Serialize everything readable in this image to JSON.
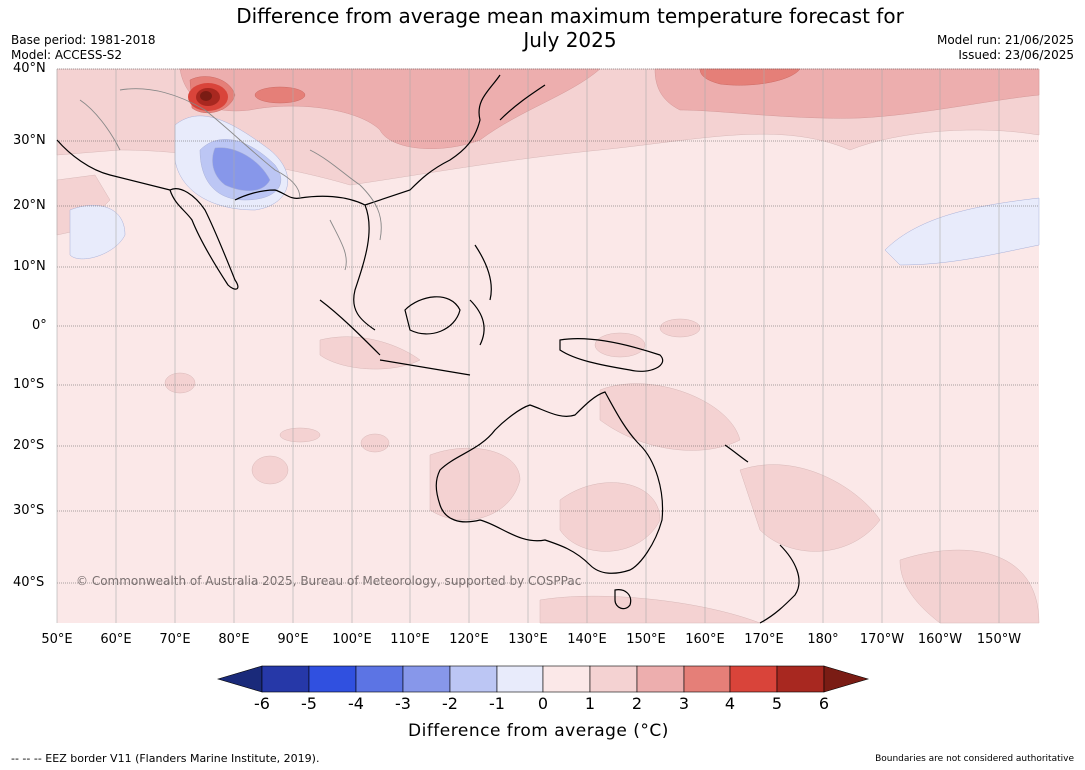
{
  "title_line1": "Difference from average mean maximum temperature forecast for",
  "title_line2": "July 2025",
  "base_period": "Base period: 1981-2018",
  "model": "Model: ACCESS-S2",
  "model_run": "Model run: 21/06/2025",
  "issued": "Issued: 23/06/2025",
  "lat_labels": [
    "40°N",
    "30°N",
    "20°N",
    "10°N",
    "0°",
    "10°S",
    "20°S",
    "30°S",
    "40°S"
  ],
  "lon_labels": [
    "50°E",
    "60°E",
    "70°E",
    "80°E",
    "90°E",
    "100°E",
    "110°E",
    "120°E",
    "130°E",
    "140°E",
    "150°E",
    "160°E",
    "170°E",
    "180°",
    "170°W",
    "160°W",
    "150°W"
  ],
  "copyright": "© Commonwealth of Australia 2025, Bureau of Meteorology, supported by COSPPac",
  "colorbar": {
    "ticks": [
      "-6",
      "-5",
      "-4",
      "-3",
      "-2",
      "-1",
      "0",
      "1",
      "2",
      "3",
      "4",
      "5",
      "6"
    ],
    "colors": [
      "#1a2a7a",
      "#2638a8",
      "#3050e0",
      "#5c74e4",
      "#8797ea",
      "#bcc6f4",
      "#e8ebfb",
      "#fbe8e8",
      "#f4d2d2",
      "#edaeae",
      "#e57f78",
      "#d9443a",
      "#a82820",
      "#7a1c14"
    ],
    "label": "Difference from average (°C)"
  },
  "footer_left": "--  --  -- EEZ border V11 (Flanders Marine Institute, 2019).",
  "footer_right": "Boundaries are not considered authoritative"
}
